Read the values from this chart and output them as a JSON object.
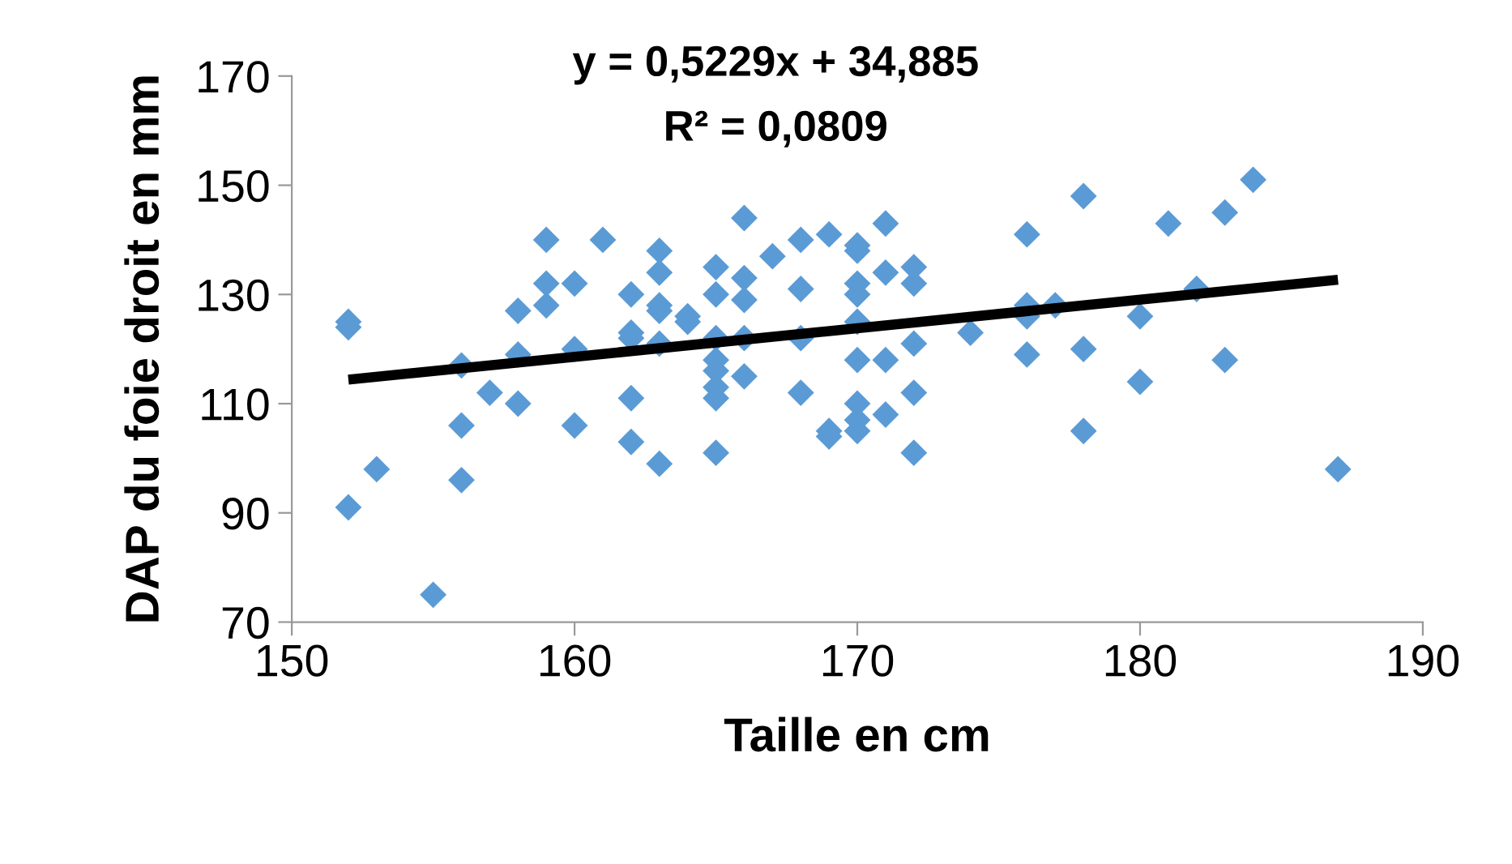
{
  "chart_data": {
    "type": "scatter",
    "xlabel": "Taille en cm",
    "ylabel": "DAP du foie droit en mm",
    "annotations": [
      "y = 0,5229x + 34,885",
      "R² = 0,0809"
    ],
    "xlim": [
      150,
      190
    ],
    "xticks": [
      150,
      160,
      170,
      180,
      190
    ],
    "ylim": [
      70,
      170
    ],
    "yticks": [
      70,
      90,
      110,
      130,
      150,
      170
    ],
    "grid": false,
    "legend": false,
    "marker": "diamond",
    "series": [
      {
        "color": "#5b9bd5",
        "x": [
          152,
          152,
          152,
          153,
          155,
          156,
          156,
          156,
          157,
          158,
          158,
          158,
          159,
          159,
          159,
          160,
          160,
          160,
          161,
          162,
          162,
          162,
          162,
          162,
          163,
          163,
          163,
          163,
          163,
          163,
          164,
          164,
          165,
          165,
          165,
          165,
          165,
          165,
          165,
          165,
          166,
          166,
          166,
          166,
          166,
          167,
          168,
          168,
          168,
          168,
          169,
          169,
          169,
          170,
          170,
          170,
          170,
          170,
          170,
          170,
          170,
          170,
          171,
          171,
          171,
          171,
          172,
          172,
          172,
          172,
          172,
          174,
          176,
          176,
          176,
          176,
          177,
          178,
          178,
          178,
          180,
          180,
          181,
          182,
          183,
          183,
          184,
          187
        ],
        "values": [
          125,
          124,
          91,
          98,
          75,
          117,
          106,
          96,
          112,
          127,
          119,
          110,
          140,
          132,
          128,
          132,
          120,
          106,
          140,
          130,
          123,
          122,
          111,
          103,
          138,
          134,
          128,
          127,
          121,
          99,
          126,
          125,
          135,
          130,
          122,
          118,
          116,
          113,
          111,
          101,
          144,
          133,
          129,
          122,
          115,
          137,
          140,
          131,
          122,
          112,
          141,
          105,
          104,
          139,
          138,
          132,
          130,
          125,
          118,
          110,
          107,
          105,
          143,
          134,
          118,
          108,
          135,
          132,
          121,
          112,
          101,
          123,
          141,
          128,
          126,
          119,
          128,
          148,
          120,
          105,
          126,
          114,
          143,
          131,
          145,
          118,
          151,
          98
        ]
      },
      {
        "type": "line",
        "color": "#000000",
        "x": [
          152,
          187
        ],
        "values": [
          114.4,
          132.7
        ],
        "line_style": "solid",
        "marker": "none"
      }
    ]
  }
}
